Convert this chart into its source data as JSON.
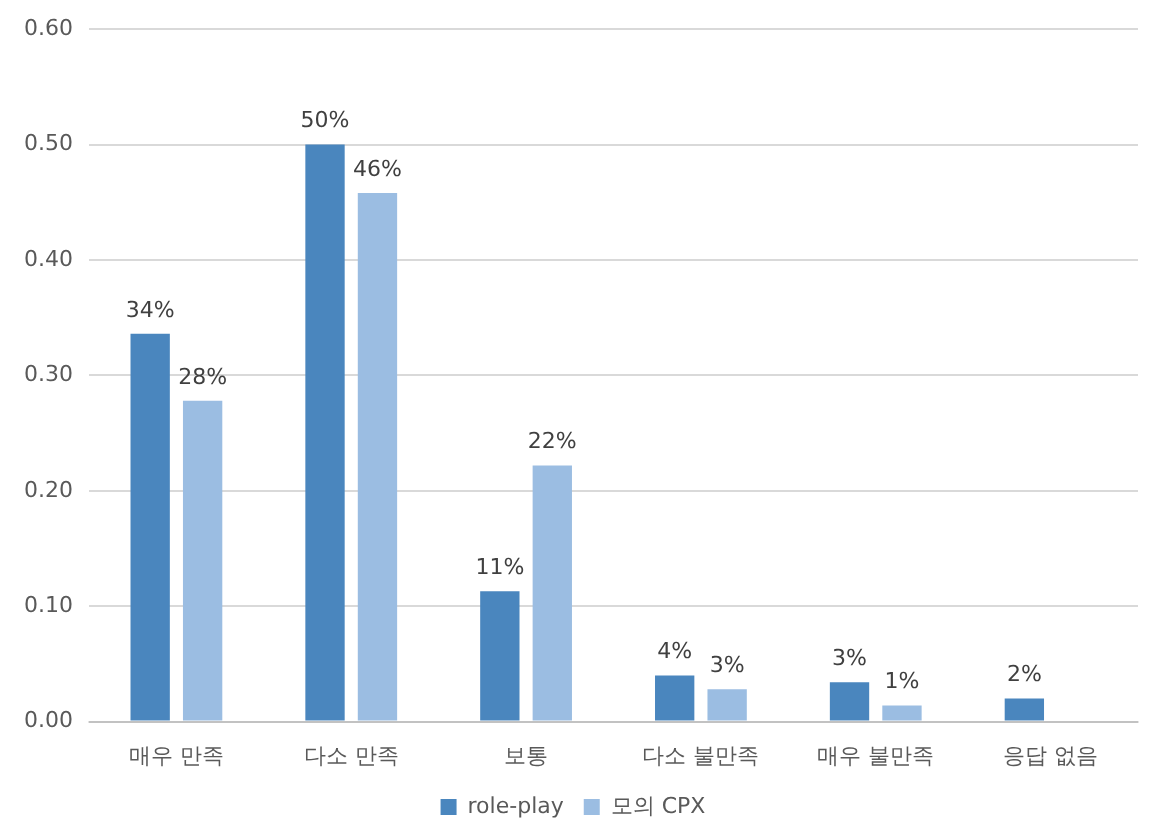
{
  "chart_data": {
    "type": "bar",
    "categories": [
      "매우 만족",
      "다소 만족",
      "보통",
      "다소 불만족",
      "매우 불만족",
      "응답 없음"
    ],
    "series": [
      {
        "name": "role-play",
        "color": "#4a86be",
        "values": [
          0.336,
          0.5,
          0.113,
          0.04,
          0.034,
          0.02
        ],
        "value_labels": [
          "34%",
          "50%",
          "11%",
          "4%",
          "3%",
          "2%"
        ]
      },
      {
        "name": "모의 CPX",
        "color": "#9bbde2",
        "values": [
          0.278,
          0.458,
          0.222,
          0.028,
          0.014,
          0
        ],
        "value_labels": [
          "28%",
          "46%",
          "22%",
          "3%",
          "1%",
          null
        ]
      }
    ],
    "ylim": [
      0,
      0.6
    ],
    "yticks": [
      {
        "value": 0,
        "label": "0.00"
      },
      {
        "value": 0.1,
        "label": "0.10"
      },
      {
        "value": 0.2,
        "label": "0.20"
      },
      {
        "value": 0.3,
        "label": "0.30"
      },
      {
        "value": 0.4,
        "label": "0.40"
      },
      {
        "value": 0.5,
        "label": "0.50"
      },
      {
        "value": 0.6,
        "label": "0.60"
      }
    ],
    "grid": "y",
    "legend": "bottom"
  }
}
